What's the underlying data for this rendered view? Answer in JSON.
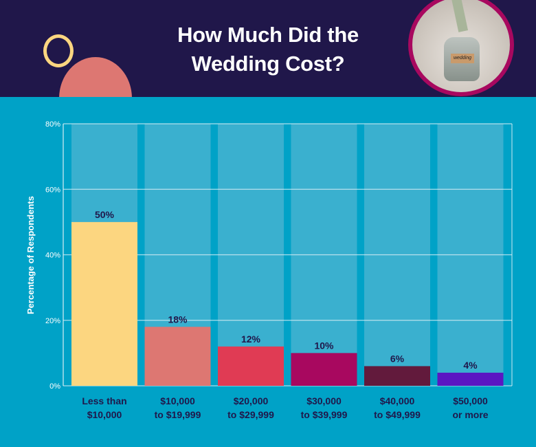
{
  "header": {
    "title_line1": "How Much Did the",
    "title_line2": "Wedding Cost?",
    "photo_tag": "wedding"
  },
  "colors": {
    "header_bg": "#20174a",
    "body_bg": "#00a2c7",
    "column_bg": "#3ab0cf",
    "label_text": "#20174a"
  },
  "chart_data": {
    "type": "bar",
    "title": "How Much Did the Wedding Cost?",
    "ylabel": "Percentage of Respondents",
    "xlabel": "",
    "ylim": [
      0,
      80
    ],
    "yticks": [
      "0%",
      "20%",
      "40%",
      "60%",
      "80%"
    ],
    "grid": true,
    "categories": [
      [
        "Less than",
        "$10,000"
      ],
      [
        "$10,000",
        "to $19,999"
      ],
      [
        "$20,000",
        "to $29,999"
      ],
      [
        "$30,000",
        "to $39,999"
      ],
      [
        "$40,000",
        "to $49,999"
      ],
      [
        "$50,000",
        "or more"
      ]
    ],
    "values": [
      50,
      18,
      12,
      10,
      6,
      4
    ],
    "data_labels": [
      "50%",
      "18%",
      "12%",
      "10%",
      "6%",
      "4%"
    ],
    "bar_colors": [
      "#fcd680",
      "#dd7772",
      "#e03b54",
      "#a8085f",
      "#621a3c",
      "#5b17c2"
    ]
  }
}
